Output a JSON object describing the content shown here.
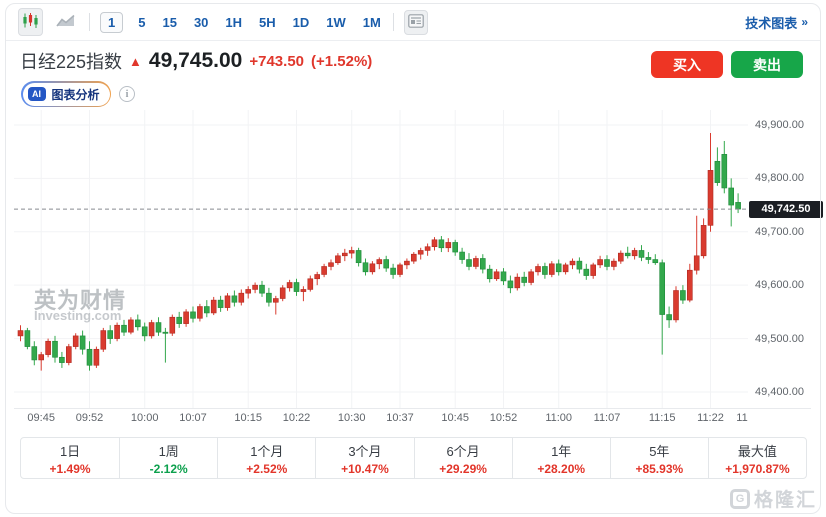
{
  "toolbar": {
    "chart_type_candlestick_selected": true,
    "timeframes": [
      {
        "label": "1",
        "selected": true
      },
      {
        "label": "5",
        "selected": false
      },
      {
        "label": "15",
        "selected": false
      },
      {
        "label": "30",
        "selected": false
      },
      {
        "label": "1H",
        "selected": false
      },
      {
        "label": "5H",
        "selected": false
      },
      {
        "label": "1D",
        "selected": false
      },
      {
        "label": "1W",
        "selected": false
      },
      {
        "label": "1M",
        "selected": false
      }
    ],
    "technical_chart": {
      "label": "技术图表",
      "arrow": "»"
    }
  },
  "header": {
    "instrument": "日经225指数",
    "direction_arrow": "▲",
    "price": "49,745.00",
    "change": "+743.50",
    "change_percent": "(+1.52%)",
    "buy_label": "买入",
    "sell_label": "卖出",
    "ai_badge": "AI",
    "ai_label": "图表分析",
    "info_glyph": "i"
  },
  "chart": {
    "watermark_title": "英为财情",
    "watermark_sub": "Investing.com",
    "last_price_label": "49,742.50"
  },
  "chart_data": {
    "type": "candlestick",
    "interval": "1m",
    "start_time": "09:42",
    "last_price": 49742.5,
    "ylim": [
      49370,
      49928
    ],
    "up_color": "#d93b2f",
    "down_color": "#33a84c",
    "grid_color": "#f2f3f5",
    "dashed_line_color": "#888b90",
    "x_offset": 4,
    "x_step": 6.9,
    "y_ticks": [
      {
        "value": 49900,
        "label": "49,900.00"
      },
      {
        "value": 49800,
        "label": "49,800.00"
      },
      {
        "value": 49700,
        "label": "49,700.00"
      },
      {
        "value": 49600,
        "label": "49,600.00"
      },
      {
        "value": 49500,
        "label": "49,500.00"
      },
      {
        "value": 49400,
        "label": "49,400.00"
      }
    ],
    "x_ticks": [
      {
        "i": 3,
        "label": "09:45"
      },
      {
        "i": 10,
        "label": "09:52"
      },
      {
        "i": 18,
        "label": "10:00"
      },
      {
        "i": 25,
        "label": "10:07"
      },
      {
        "i": 33,
        "label": "10:15"
      },
      {
        "i": 40,
        "label": "10:22"
      },
      {
        "i": 48,
        "label": "10:30"
      },
      {
        "i": 55,
        "label": "10:37"
      },
      {
        "i": 63,
        "label": "10:45"
      },
      {
        "i": 70,
        "label": "10:52"
      },
      {
        "i": 78,
        "label": "11:00"
      },
      {
        "i": 85,
        "label": "11:07"
      },
      {
        "i": 93,
        "label": "11:15"
      },
      {
        "i": 100,
        "label": "11:22"
      },
      {
        "i": 107,
        "label": "11"
      }
    ],
    "candles": [
      [
        49505,
        49525,
        49495,
        49515
      ],
      [
        49515,
        49520,
        49480,
        49485
      ],
      [
        49485,
        49495,
        49450,
        49460
      ],
      [
        49460,
        49475,
        49440,
        49470
      ],
      [
        49470,
        49500,
        49465,
        49495
      ],
      [
        49495,
        49505,
        49455,
        49465
      ],
      [
        49465,
        49475,
        49445,
        49455
      ],
      [
        49455,
        49490,
        49450,
        49485
      ],
      [
        49485,
        49510,
        49480,
        49505
      ],
      [
        49505,
        49515,
        49470,
        49480
      ],
      [
        49480,
        49495,
        49440,
        49450
      ],
      [
        49450,
        49485,
        49445,
        49480
      ],
      [
        49480,
        49520,
        49475,
        49515
      ],
      [
        49515,
        49525,
        49490,
        49500
      ],
      [
        49500,
        49530,
        49495,
        49525
      ],
      [
        49525,
        49535,
        49505,
        49512
      ],
      [
        49512,
        49540,
        49508,
        49535
      ],
      [
        49535,
        49545,
        49515,
        49522
      ],
      [
        49522,
        49530,
        49495,
        49505
      ],
      [
        49505,
        49535,
        49500,
        49530
      ],
      [
        49530,
        49540,
        49505,
        49512
      ],
      [
        49512,
        49520,
        49455,
        49510
      ],
      [
        49510,
        49545,
        49505,
        49540
      ],
      [
        49540,
        49550,
        49520,
        49528
      ],
      [
        49528,
        49555,
        49522,
        49550
      ],
      [
        49550,
        49560,
        49530,
        49538
      ],
      [
        49538,
        49565,
        49532,
        49560
      ],
      [
        49560,
        49572,
        49540,
        49548
      ],
      [
        49548,
        49578,
        49544,
        49572
      ],
      [
        49572,
        49580,
        49550,
        49558
      ],
      [
        49558,
        49585,
        49552,
        49580
      ],
      [
        49580,
        49590,
        49560,
        49568
      ],
      [
        49568,
        49592,
        49562,
        49585
      ],
      [
        49585,
        49598,
        49575,
        49592
      ],
      [
        49592,
        49605,
        49585,
        49600
      ],
      [
        49600,
        49608,
        49578,
        49585
      ],
      [
        49585,
        49595,
        49560,
        49568
      ],
      [
        49568,
        49580,
        49545,
        49575
      ],
      [
        49575,
        49600,
        49570,
        49595
      ],
      [
        49595,
        49610,
        49588,
        49605
      ],
      [
        49605,
        49612,
        49580,
        49588
      ],
      [
        49588,
        49598,
        49570,
        49592
      ],
      [
        49592,
        49618,
        49588,
        49612
      ],
      [
        49612,
        49625,
        49600,
        49620
      ],
      [
        49620,
        49640,
        49615,
        49635
      ],
      [
        49635,
        49648,
        49628,
        49642
      ],
      [
        49642,
        49660,
        49638,
        49655
      ],
      [
        49655,
        49668,
        49645,
        49660
      ],
      [
        49660,
        49672,
        49650,
        49665
      ],
      [
        49665,
        49670,
        49635,
        49642
      ],
      [
        49642,
        49650,
        49618,
        49625
      ],
      [
        49625,
        49645,
        49620,
        49640
      ],
      [
        49640,
        49652,
        49630,
        49648
      ],
      [
        49648,
        49655,
        49625,
        49632
      ],
      [
        49632,
        49640,
        49612,
        49620
      ],
      [
        49620,
        49642,
        49615,
        49638
      ],
      [
        49638,
        49650,
        49630,
        49645
      ],
      [
        49645,
        49662,
        49640,
        49658
      ],
      [
        49658,
        49670,
        49648,
        49665
      ],
      [
        49665,
        49678,
        49655,
        49672
      ],
      [
        49672,
        49690,
        49665,
        49685
      ],
      [
        49685,
        49692,
        49662,
        49670
      ],
      [
        49670,
        49688,
        49662,
        49680
      ],
      [
        49680,
        49685,
        49655,
        49662
      ],
      [
        49662,
        49670,
        49640,
        49648
      ],
      [
        49648,
        49660,
        49628,
        49635
      ],
      [
        49635,
        49655,
        49630,
        49650
      ],
      [
        49650,
        49658,
        49622,
        49630
      ],
      [
        49630,
        49638,
        49605,
        49612
      ],
      [
        49612,
        49630,
        49608,
        49625
      ],
      [
        49625,
        49632,
        49600,
        49608
      ],
      [
        49608,
        49618,
        49585,
        49595
      ],
      [
        49595,
        49622,
        49590,
        49615
      ],
      [
        49615,
        49625,
        49598,
        49605
      ],
      [
        49605,
        49630,
        49600,
        49625
      ],
      [
        49625,
        49640,
        49618,
        49635
      ],
      [
        49635,
        49642,
        49612,
        49620
      ],
      [
        49620,
        49645,
        49615,
        49640
      ],
      [
        49640,
        49648,
        49618,
        49625
      ],
      [
        49625,
        49642,
        49620,
        49638
      ],
      [
        49638,
        49650,
        49630,
        49645
      ],
      [
        49645,
        49652,
        49622,
        49630
      ],
      [
        49630,
        49640,
        49610,
        49618
      ],
      [
        49618,
        49642,
        49612,
        49638
      ],
      [
        49638,
        49655,
        49632,
        49648
      ],
      [
        49648,
        49656,
        49628,
        49635
      ],
      [
        49635,
        49650,
        49628,
        49645
      ],
      [
        49645,
        49665,
        49640,
        49660
      ],
      [
        49660,
        49672,
        49650,
        49655
      ],
      [
        49655,
        49670,
        49648,
        49665
      ],
      [
        49665,
        49675,
        49645,
        49652
      ],
      [
        49652,
        49662,
        49640,
        49648
      ],
      [
        49648,
        49658,
        49638,
        49642
      ],
      [
        49642,
        49648,
        49470,
        49545
      ],
      [
        49545,
        49560,
        49520,
        49535
      ],
      [
        49535,
        49598,
        49530,
        49590
      ],
      [
        49590,
        49600,
        49565,
        49572
      ],
      [
        49572,
        49640,
        49568,
        49628
      ],
      [
        49628,
        49730,
        49620,
        49655
      ],
      [
        49655,
        49725,
        49650,
        49712
      ],
      [
        49712,
        49885,
        49700,
        49815
      ],
      [
        49832,
        49858,
        49786,
        49792
      ],
      [
        49845,
        49870,
        49772,
        49782
      ],
      [
        49782,
        49800,
        49710,
        49750
      ],
      [
        49755,
        49772,
        49735,
        49742.5
      ]
    ]
  },
  "performance": {
    "items": [
      {
        "label": "1日",
        "value": "+1.49%",
        "direction": "up"
      },
      {
        "label": "1周",
        "value": "-2.12%",
        "direction": "down"
      },
      {
        "label": "1个月",
        "value": "+2.52%",
        "direction": "up"
      },
      {
        "label": "3个月",
        "value": "+10.47%",
        "direction": "up"
      },
      {
        "label": "6个月",
        "value": "+29.29%",
        "direction": "up"
      },
      {
        "label": "1年",
        "value": "+28.20%",
        "direction": "up"
      },
      {
        "label": "5年",
        "value": "+85.93%",
        "direction": "up"
      },
      {
        "label": "最大值",
        "value": "+1,970.87%",
        "direction": "up"
      }
    ]
  },
  "footer": {
    "logo_text": "格隆汇",
    "logo_initial": "G"
  }
}
